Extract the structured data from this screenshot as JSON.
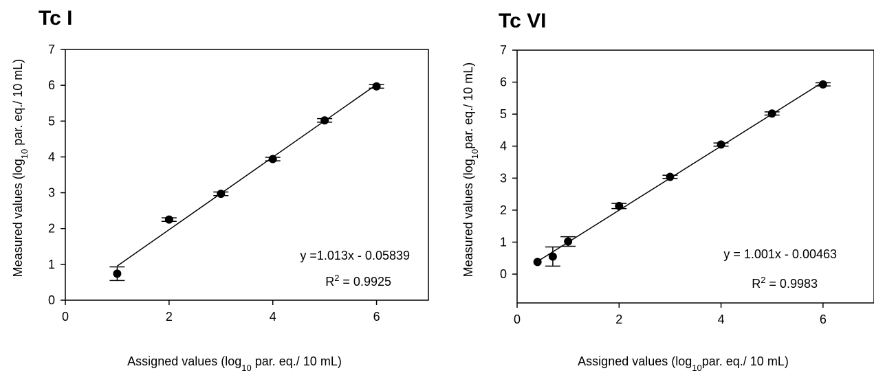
{
  "chart_data": [
    {
      "type": "scatter",
      "title": "Tc I",
      "xlabel": {
        "pre": "Assigned values (log",
        "sub": "10",
        "post": " par. eq./ 10 mL)"
      },
      "ylabel": {
        "pre": "Measured values (log",
        "sub": "10",
        "post": " par. eq./ 10 mL)"
      },
      "xlim": [
        0,
        7
      ],
      "ylim": [
        0,
        7
      ],
      "xticks": [
        0,
        2,
        4,
        6
      ],
      "yticks": [
        0,
        1,
        2,
        3,
        4,
        5,
        6,
        7
      ],
      "points": [
        {
          "x": 1,
          "y": 0.74,
          "err": 0.19
        },
        {
          "x": 2,
          "y": 2.25,
          "err": 0.05
        },
        {
          "x": 3,
          "y": 2.97,
          "err": 0.05
        },
        {
          "x": 4,
          "y": 3.94,
          "err": 0.05
        },
        {
          "x": 5,
          "y": 5.02,
          "err": 0.05
        },
        {
          "x": 6,
          "y": 5.97,
          "err": 0.05
        }
      ],
      "fit": {
        "slope": 1.013,
        "intercept": -0.05839,
        "x_range": [
          1,
          6
        ]
      },
      "equation": "y =1.013x - 0.05839",
      "r2": {
        "pre": "R",
        "sup": "2",
        "post": " = 0.9925"
      },
      "grid": false
    },
    {
      "type": "scatter",
      "title": "Tc VI",
      "xlabel": {
        "pre": "Assigned values (log",
        "sub": "10",
        "post": "par. eq./ 10 mL)"
      },
      "ylabel": {
        "pre": "Measured values (log",
        "sub": "10",
        "post": "par. eq./ 10 mL)"
      },
      "xlim": [
        0,
        7
      ],
      "ylim": [
        -0.9,
        7
      ],
      "xticks": [
        0,
        2,
        4,
        6
      ],
      "yticks": [
        0,
        1,
        2,
        3,
        4,
        5,
        6,
        7
      ],
      "points": [
        {
          "x": 0.4,
          "y": 0.38,
          "err": 0
        },
        {
          "x": 0.7,
          "y": 0.55,
          "err": 0.3
        },
        {
          "x": 1,
          "y": 1.02,
          "err": 0.15
        },
        {
          "x": 2,
          "y": 2.13,
          "err": 0.08
        },
        {
          "x": 3,
          "y": 3.04,
          "err": 0.05
        },
        {
          "x": 4,
          "y": 4.05,
          "err": 0.05
        },
        {
          "x": 5,
          "y": 5.02,
          "err": 0.05
        },
        {
          "x": 6,
          "y": 5.93,
          "err": 0.05
        }
      ],
      "fit": {
        "slope": 1.001,
        "intercept": -0.00463,
        "x_range": [
          0.4,
          6
        ]
      },
      "equation": "y = 1.001x - 0.00463",
      "r2": {
        "pre": "R",
        "sup": "2",
        "post": " = 0.9983"
      },
      "grid": false
    }
  ]
}
